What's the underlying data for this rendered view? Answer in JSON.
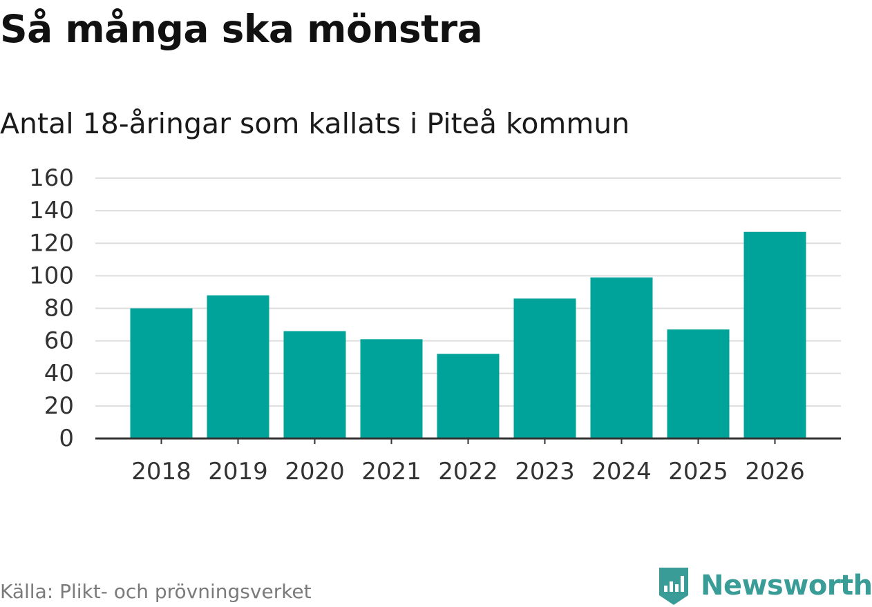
{
  "header": {
    "title": "Så många ska mönstra",
    "subtitle": "Antal 18-åringar som kallats i Piteå kommun"
  },
  "footer": {
    "source": "Källa: Plikt- och prövningsverket",
    "brand": "Newsworthy",
    "brand_icon": "newsworthy-logo-icon"
  },
  "colors": {
    "bar": "#00A39A",
    "grid": "#dddddd",
    "axis": "#333333",
    "brand": "#3a9c96"
  },
  "chart_data": {
    "type": "bar",
    "categories": [
      "2018",
      "2019",
      "2020",
      "2021",
      "2022",
      "2023",
      "2024",
      "2025",
      "2026"
    ],
    "values": [
      80,
      88,
      66,
      61,
      52,
      86,
      99,
      67,
      127
    ],
    "title": "Så många ska mönstra",
    "subtitle": "Antal 18-åringar som kallats i Piteå kommun",
    "xlabel": "",
    "ylabel": "",
    "ylim": [
      0,
      160
    ],
    "yticks": [
      0,
      20,
      40,
      60,
      80,
      100,
      120,
      140,
      160
    ],
    "grid": true,
    "legend": "none"
  }
}
